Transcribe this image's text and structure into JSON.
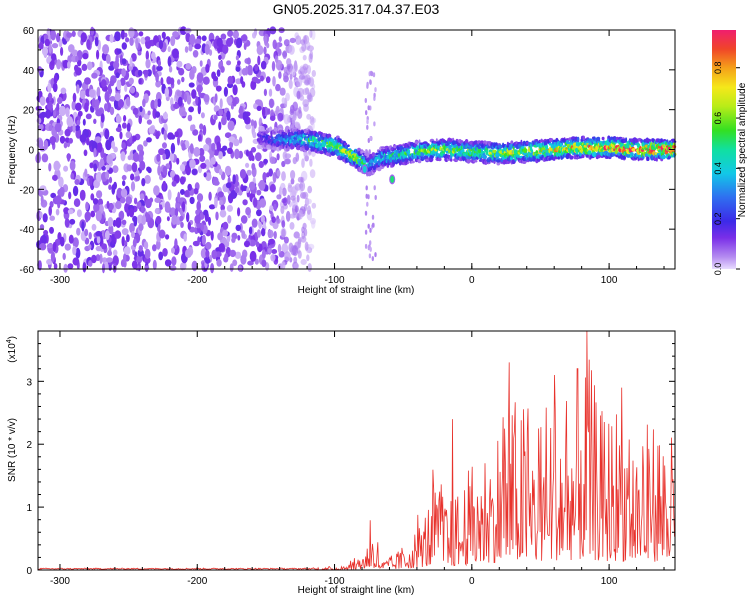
{
  "title": "GN05.2025.317.04.37.E03",
  "chart_data": [
    {
      "type": "heatmap",
      "name": "spectrogram",
      "xlabel": "Height of straight line (km)",
      "ylabel": "Frequency (Hz)",
      "xlim": [
        -316,
        148
      ],
      "ylim": [
        -60,
        60
      ],
      "xticks": [
        "-300",
        "-200",
        "-100",
        "0",
        "100"
      ],
      "yticks": [
        "-60",
        "-40",
        "-20",
        "0",
        "20",
        "40",
        "60"
      ],
      "colorbar": {
        "label": "Normalized spectral amplitude",
        "range": [
          0,
          0.95
        ],
        "ticks": [
          "0.0",
          "0.2",
          "0.4",
          "0.6",
          "0.8"
        ]
      },
      "noise_region_x": [
        -316,
        -115
      ],
      "ridge": {
        "x": [
          -155,
          -140,
          -125,
          -115,
          -100,
          -90,
          -82,
          -75,
          -65,
          -55,
          -40,
          -20,
          0,
          20,
          40,
          60,
          80,
          100,
          120,
          148
        ],
        "y": [
          6,
          5,
          5,
          4,
          2,
          -2,
          -5,
          -8,
          -4,
          -3,
          -1,
          0,
          -1,
          -2,
          -1,
          0,
          1,
          1,
          0,
          0
        ],
        "amp": [
          0.15,
          0.3,
          0.45,
          0.55,
          0.6,
          0.7,
          0.6,
          0.35,
          0.45,
          0.5,
          0.55,
          0.65,
          0.6,
          0.65,
          0.7,
          0.75,
          0.8,
          0.85,
          0.9,
          0.95
        ]
      },
      "features": [
        {
          "x": -58,
          "y": -15,
          "amp": 0.5
        },
        {
          "x": -78,
          "y": -10,
          "amp": 0.4
        }
      ]
    },
    {
      "type": "line",
      "name": "snr",
      "xlabel": "Height of straight line (km)",
      "ylabel": "SNR (10 * v/v)",
      "yexp_label": "(x10",
      "yexp_sup": "4",
      "yexp_close": ")",
      "xlim": [
        -316,
        148
      ],
      "ylim": [
        0,
        3.8
      ],
      "xticks": [
        "-300",
        "-200",
        "-100",
        "0",
        "100"
      ],
      "yticks": [
        "0",
        "1",
        "2",
        "3"
      ],
      "color": "#e8322c",
      "envelope": {
        "x": [
          -316,
          -120,
          -100,
          -90,
          -80,
          -72,
          -65,
          -55,
          -45,
          -35,
          -25,
          -15,
          -5,
          5,
          15,
          25,
          35,
          45,
          55,
          65,
          75,
          85,
          95,
          105,
          115,
          125,
          135,
          148
        ],
        "y": [
          0.03,
          0.03,
          0.05,
          0.12,
          0.3,
          0.7,
          0.15,
          0.3,
          0.55,
          1.0,
          1.6,
          1.2,
          1.6,
          2.0,
          2.3,
          2.8,
          3.0,
          2.5,
          3.0,
          3.1,
          3.2,
          3.6,
          2.7,
          2.9,
          2.6,
          2.4,
          2.7,
          2.2
        ]
      },
      "peaks": [
        {
          "x": -74,
          "y": 0.79
        },
        {
          "x": -14,
          "y": 2.4
        },
        {
          "x": 27,
          "y": 3.3
        },
        {
          "x": 60,
          "y": 3.1
        },
        {
          "x": 77,
          "y": 3.2
        },
        {
          "x": 84,
          "y": 3.8
        },
        {
          "x": 109,
          "y": 2.9
        }
      ]
    }
  ]
}
